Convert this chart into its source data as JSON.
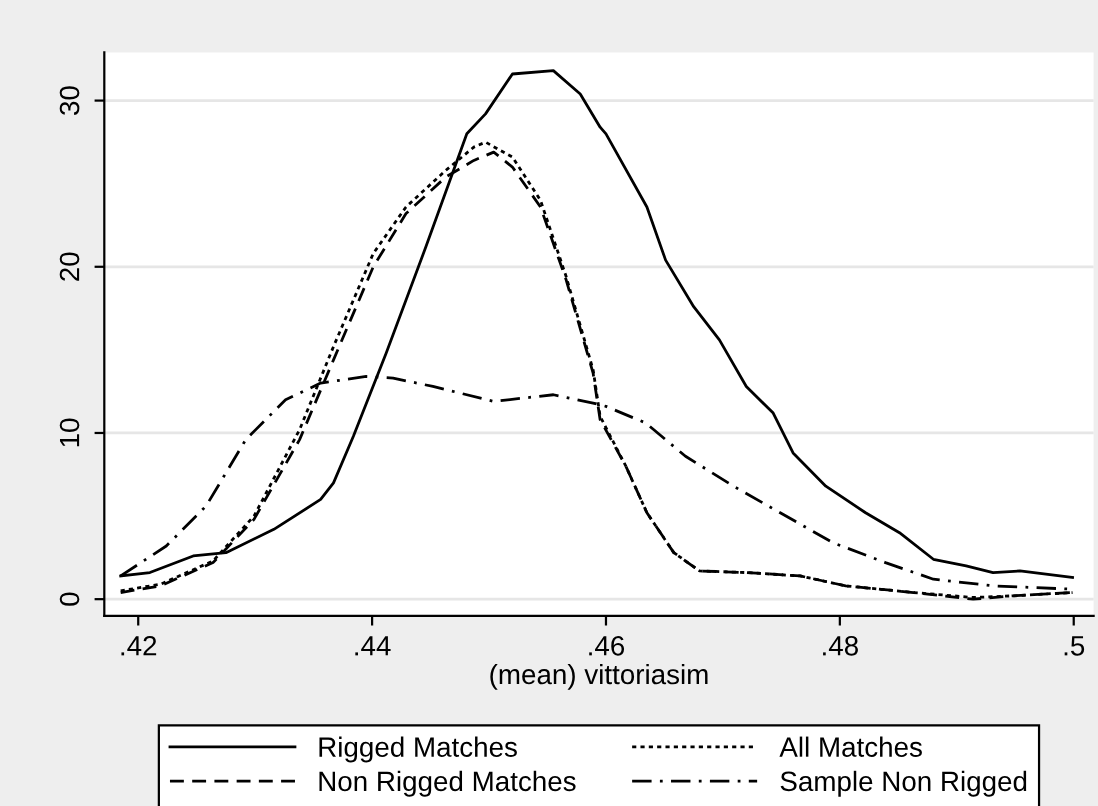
{
  "chart_data": {
    "type": "line",
    "xlabel": "(mean) vittoriasim",
    "xlim": [
      0.4171,
      0.5017
    ],
    "ylim": [
      -1,
      32.9
    ],
    "xticks": [
      {
        "value": 0.42,
        "label": ".42"
      },
      {
        "value": 0.44,
        "label": ".44"
      },
      {
        "value": 0.46,
        "label": ".46"
      },
      {
        "value": 0.48,
        "label": ".48"
      },
      {
        "value": 0.5,
        "label": ".5"
      }
    ],
    "yticks": [
      0,
      10,
      20,
      30
    ],
    "grid": "y",
    "legend": "bottom",
    "marker": "none",
    "series": [
      {
        "name": "Rigged Matches",
        "color": "#000000",
        "line_style": "solid",
        "x": [
          0.4185,
          0.421,
          0.4247,
          0.4275,
          0.4316,
          0.4356,
          0.4367,
          0.4384,
          0.4412,
          0.4446,
          0.4481,
          0.4497,
          0.452,
          0.4555,
          0.4578,
          0.4595,
          0.46,
          0.4635,
          0.4651,
          0.4675,
          0.4697,
          0.472,
          0.4743,
          0.476,
          0.4788,
          0.4822,
          0.4851,
          0.488,
          0.4908,
          0.4931,
          0.4954,
          0.4999
        ],
        "values": [
          1.4,
          1.6,
          2.6,
          2.8,
          4.2,
          6.0,
          7.0,
          9.8,
          14.8,
          21.2,
          28.0,
          29.2,
          31.6,
          31.8,
          30.4,
          28.4,
          28.0,
          23.6,
          20.4,
          17.6,
          15.6,
          12.8,
          11.2,
          8.8,
          6.8,
          5.2,
          4.0,
          2.4,
          2.0,
          1.6,
          1.7,
          1.3
        ]
      },
      {
        "name": "Non Rigged Matches",
        "color": "#000000",
        "line_style": "dashed",
        "x": [
          0.4185,
          0.4219,
          0.4264,
          0.4299,
          0.4338,
          0.4367,
          0.4401,
          0.4429,
          0.4463,
          0.4487,
          0.4504,
          0.452,
          0.4544,
          0.4566,
          0.4589,
          0.4595,
          0.4617,
          0.4635,
          0.4658,
          0.468,
          0.472,
          0.4766,
          0.4805,
          0.4863,
          0.4914,
          0.4948,
          0.4999
        ],
        "values": [
          0.4,
          0.8,
          2.2,
          4.8,
          9.6,
          14.4,
          20.0,
          23.2,
          25.4,
          26.4,
          26.9,
          26.0,
          23.6,
          19.2,
          13.6,
          10.8,
          8.0,
          5.2,
          2.8,
          1.7,
          1.6,
          1.4,
          0.8,
          0.4,
          0.0,
          0.2,
          0.4
        ]
      },
      {
        "name": "All Matches",
        "color": "#000000",
        "line_style": "dotted",
        "x": [
          0.4185,
          0.4219,
          0.4264,
          0.4299,
          0.4338,
          0.4367,
          0.4401,
          0.4429,
          0.4463,
          0.4487,
          0.4497,
          0.452,
          0.4544,
          0.4566,
          0.4589,
          0.4595,
          0.4617,
          0.4635,
          0.4658,
          0.468,
          0.472,
          0.4766,
          0.4805,
          0.4863,
          0.4914,
          0.4948,
          0.4999
        ],
        "values": [
          0.5,
          0.9,
          2.3,
          5.0,
          10.2,
          15.2,
          20.8,
          23.6,
          25.8,
          27.2,
          27.5,
          26.6,
          24.0,
          19.4,
          13.8,
          11.0,
          8.0,
          5.2,
          2.8,
          1.7,
          1.6,
          1.4,
          0.8,
          0.4,
          0.1,
          0.2,
          0.4
        ]
      },
      {
        "name": "Sample Non Rigged",
        "color": "#000000",
        "line_style": "dashdot",
        "x": [
          0.4185,
          0.4224,
          0.4258,
          0.4292,
          0.4326,
          0.4356,
          0.4395,
          0.4418,
          0.4452,
          0.4504,
          0.4555,
          0.4589,
          0.46,
          0.4634,
          0.4668,
          0.4709,
          0.4749,
          0.4794,
          0.4839,
          0.488,
          0.4931,
          0.4999
        ],
        "values": [
          1.4,
          3.2,
          5.6,
          9.6,
          12.0,
          13.0,
          13.4,
          13.3,
          12.8,
          11.9,
          12.3,
          11.8,
          11.6,
          10.6,
          8.6,
          6.8,
          5.2,
          3.4,
          2.2,
          1.2,
          0.8,
          0.6
        ]
      }
    ]
  }
}
